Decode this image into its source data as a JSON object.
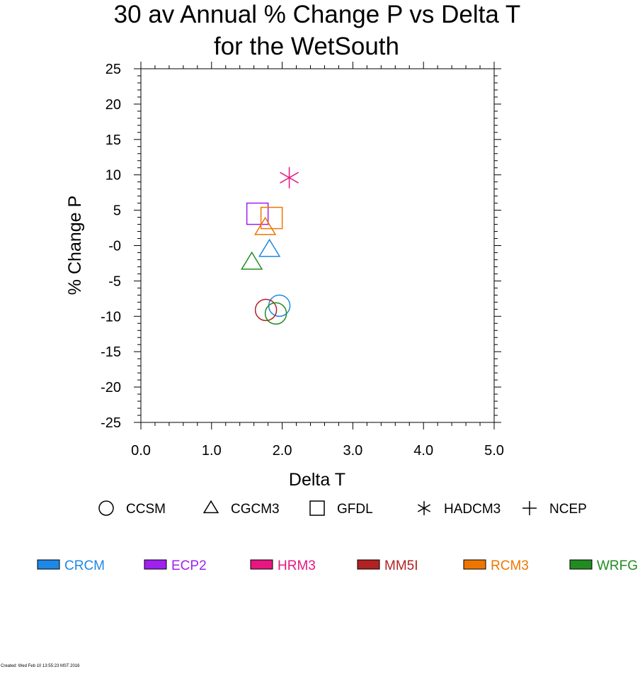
{
  "chart_data": {
    "type": "scatter",
    "title_line1": "30 av Annual % Change P vs Delta T",
    "title_line2": "for the WetSouth",
    "xlabel": "Delta T",
    "ylabel": "% Change P",
    "xlim": [
      0,
      5
    ],
    "ylim": [
      -25,
      25
    ],
    "xticks": [
      0,
      1,
      2,
      3,
      4,
      5
    ],
    "xtick_labels": [
      "0.0",
      "1.0",
      "2.0",
      "3.0",
      "4.0",
      "5.0"
    ],
    "yticks": [
      25,
      20,
      15,
      10,
      5,
      0,
      -5,
      -10,
      -15,
      -20,
      -25
    ],
    "ytick_labels": [
      "25",
      "20",
      "15",
      "10",
      "5",
      "-0",
      "-5",
      "-10",
      "-15",
      "-20",
      "-25"
    ],
    "grid": false,
    "points": [
      {
        "rcm": "HRM3",
        "gcm": "HADCM3",
        "x": 2.1,
        "y": 9.6
      },
      {
        "rcm": "ECP2",
        "gcm": "GFDL",
        "x": 1.65,
        "y": 4.5
      },
      {
        "rcm": "RCM3",
        "gcm": "GFDL",
        "x": 1.85,
        "y": 3.9
      },
      {
        "rcm": "RCM3",
        "gcm": "CGCM3",
        "x": 1.76,
        "y": 2.5
      },
      {
        "rcm": "CRCM",
        "gcm": "CGCM3",
        "x": 1.82,
        "y": -0.6
      },
      {
        "rcm": "WRFG",
        "gcm": "CGCM3",
        "x": 1.57,
        "y": -2.4
      },
      {
        "rcm": "CRCM",
        "gcm": "CCSM",
        "x": 1.96,
        "y": -8.5
      },
      {
        "rcm": "MM5I",
        "gcm": "CCSM",
        "x": 1.77,
        "y": -9.1
      },
      {
        "rcm": "WRFG",
        "gcm": "CCSM",
        "x": 1.91,
        "y": -9.6
      }
    ]
  },
  "legend_markers": [
    {
      "label": "CCSM",
      "shape": "circle"
    },
    {
      "label": "CGCM3",
      "shape": "triangle"
    },
    {
      "label": "GFDL",
      "shape": "square"
    },
    {
      "label": "HADCM3",
      "shape": "asterisk"
    },
    {
      "label": "NCEP",
      "shape": "plus"
    }
  ],
  "legend_colors": [
    {
      "label": "CRCM",
      "color": "#1e88e5"
    },
    {
      "label": "ECP2",
      "color": "#a020f0"
    },
    {
      "label": "HRM3",
      "color": "#e81680"
    },
    {
      "label": "MM5I",
      "color": "#b22222"
    },
    {
      "label": "RCM3",
      "color": "#ee7600"
    },
    {
      "label": "WRFG",
      "color": "#228b22"
    }
  ],
  "created_text": "Created: Wed Feb 10 13:55:23 MST 2016"
}
